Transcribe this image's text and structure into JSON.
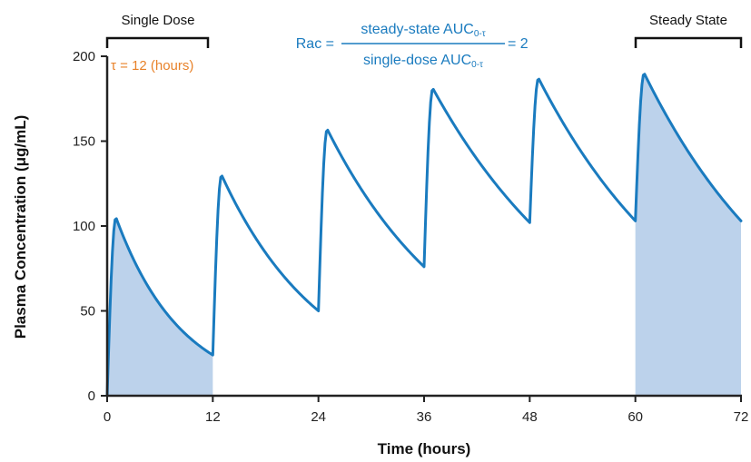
{
  "chart_data": {
    "type": "line",
    "xlabel": "Time (hours)",
    "ylabel": "Plasma Concentration (μg/mL)",
    "xlim": [
      0,
      72
    ],
    "ylim": [
      0,
      200
    ],
    "x_ticks": [
      "0",
      "12",
      "24",
      "36",
      "48",
      "60",
      "72"
    ],
    "y_ticks": [
      "0",
      "50",
      "100",
      "150",
      "200"
    ],
    "grid": false,
    "dosing_interval_hours": 12,
    "dose_times": [
      0,
      12,
      24,
      36,
      48,
      60
    ],
    "peaks": [
      105,
      130,
      157,
      181,
      187,
      190
    ],
    "troughs": [
      24,
      50,
      76,
      102,
      103,
      103
    ],
    "shaded_intervals": [
      [
        0,
        12
      ],
      [
        60,
        72
      ]
    ],
    "colors": {
      "line": "#1a7bbf",
      "fill": "#bcd2eb",
      "tau": "#e8822a",
      "formula": "#1a7bbf",
      "axis": "#222222"
    },
    "annotations": {
      "single_dose": "Single Dose",
      "steady_state": "Steady State",
      "tau_text": "τ = 12 (hours)",
      "formula": {
        "lhs": "Rac =",
        "numerator": "steady-state AUC",
        "denominator": "single-dose AUC",
        "subscript": "0-τ",
        "rhs": "= 2"
      }
    }
  }
}
